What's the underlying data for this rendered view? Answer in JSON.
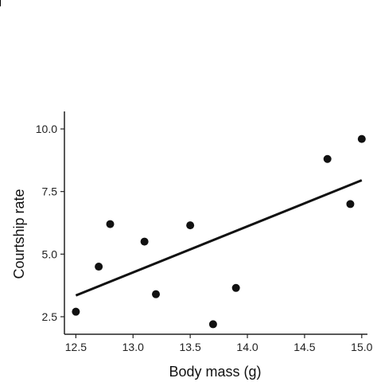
{
  "chart_data": {
    "type": "scatter",
    "title": "",
    "xlabel": "Body mass (g)",
    "ylabel": "Courtship rate",
    "xlim": [
      12.4,
      15.05
    ],
    "ylim": [
      1.8,
      10.7
    ],
    "xticks": [
      12.5,
      13.0,
      13.5,
      14.0,
      14.5,
      15.0
    ],
    "xtick_labels": [
      "12.5",
      "13.0",
      "13.5",
      "14.0",
      "14.5",
      "15.0"
    ],
    "yticks": [
      2.5,
      5.0,
      7.5,
      10.0
    ],
    "ytick_labels": [
      "2.5",
      "5.0",
      "7.5",
      "10.0"
    ],
    "grid": false,
    "series": [
      {
        "x": [
          12.5,
          12.7,
          12.8,
          13.1,
          13.2,
          13.5,
          13.7,
          13.9,
          14.7,
          14.9,
          15.0
        ],
        "y": [
          2.7,
          4.5,
          6.2,
          5.5,
          3.4,
          6.15,
          2.2,
          3.65,
          8.8,
          7.0,
          9.6
        ]
      }
    ],
    "trendline": {
      "x": [
        12.5,
        15.0
      ],
      "y": [
        3.35,
        7.95
      ]
    }
  }
}
